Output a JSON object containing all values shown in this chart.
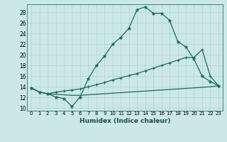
{
  "title": "",
  "xlabel": "Humidex (Indice chaleur)",
  "ylabel": "",
  "bg_color": "#cce8e4",
  "line_color": "#1a6b5e",
  "grid_color": "#b0d4cc",
  "x_ticks": [
    0,
    1,
    2,
    3,
    4,
    5,
    6,
    7,
    8,
    9,
    10,
    11,
    12,
    13,
    14,
    15,
    16,
    17,
    18,
    19,
    20,
    21,
    22,
    23
  ],
  "y_ticks": [
    10,
    12,
    14,
    16,
    18,
    20,
    22,
    24,
    26,
    28
  ],
  "xlim": [
    -0.5,
    23.5
  ],
  "ylim": [
    9.5,
    29.5
  ],
  "line1_x": [
    0,
    1,
    2,
    3,
    4,
    5,
    6,
    7,
    8,
    9,
    10,
    11,
    12,
    13,
    14,
    15,
    16,
    17,
    18,
    19,
    20,
    21,
    22,
    23
  ],
  "line1_y": [
    13.8,
    13.0,
    12.7,
    12.1,
    11.8,
    10.3,
    12.1,
    15.5,
    18.0,
    19.8,
    22.0,
    23.3,
    25.0,
    28.5,
    29.0,
    27.8,
    27.8,
    26.5,
    22.5,
    21.5,
    19.2,
    16.0,
    15.0,
    14.2
  ],
  "line2_x": [
    0,
    1,
    2,
    3,
    4,
    5,
    6,
    7,
    8,
    9,
    10,
    11,
    12,
    13,
    14,
    15,
    16,
    17,
    18,
    19,
    20,
    21,
    22,
    23
  ],
  "line2_y": [
    13.8,
    13.0,
    12.7,
    13.0,
    13.2,
    13.4,
    13.6,
    14.0,
    14.4,
    14.8,
    15.3,
    15.7,
    16.1,
    16.5,
    17.0,
    17.5,
    18.0,
    18.5,
    19.0,
    19.5,
    19.5,
    21.0,
    16.0,
    14.2
  ],
  "line3_x": [
    0,
    1,
    2,
    3,
    4,
    5,
    6,
    7,
    8,
    9,
    10,
    11,
    12,
    13,
    14,
    15,
    16,
    17,
    18,
    19,
    20,
    21,
    22,
    23
  ],
  "line3_y": [
    13.8,
    13.0,
    12.7,
    12.6,
    12.5,
    12.4,
    12.4,
    12.5,
    12.6,
    12.7,
    12.8,
    12.9,
    13.0,
    13.1,
    13.2,
    13.3,
    13.4,
    13.5,
    13.6,
    13.7,
    13.8,
    13.9,
    14.0,
    14.2
  ]
}
